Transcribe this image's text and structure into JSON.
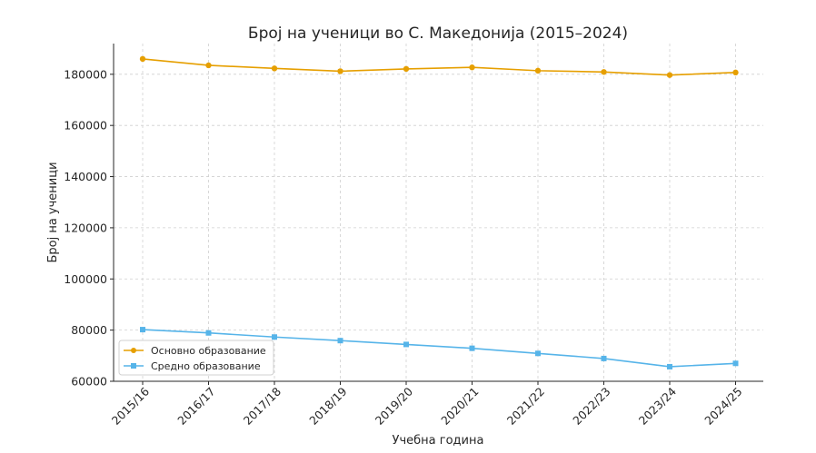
{
  "chart_data": {
    "type": "line",
    "title": "Број на ученици во С. Македонија (2015–2024)",
    "xlabel": "Учебна година",
    "ylabel": "Број на ученици",
    "categories": [
      "2015/16",
      "2016/17",
      "2017/18",
      "2018/19",
      "2019/20",
      "2020/21",
      "2021/22",
      "2022/23",
      "2023/24",
      "2024/25"
    ],
    "ylim": [
      60000,
      192000
    ],
    "yticks": [
      60000,
      80000,
      100000,
      120000,
      140000,
      160000,
      180000
    ],
    "grid": true,
    "legend_position": "lower-left",
    "series": [
      {
        "name": "Основно образование",
        "color": "#e69f00",
        "marker": "circle",
        "values": [
          186000,
          183500,
          182300,
          181200,
          182100,
          182700,
          181400,
          180900,
          179700,
          180700
        ]
      },
      {
        "name": "Средно образование",
        "color": "#56b4e9",
        "marker": "square",
        "values": [
          80200,
          78900,
          77300,
          75900,
          74400,
          72900,
          70900,
          68900,
          65700,
          67000
        ]
      }
    ]
  }
}
